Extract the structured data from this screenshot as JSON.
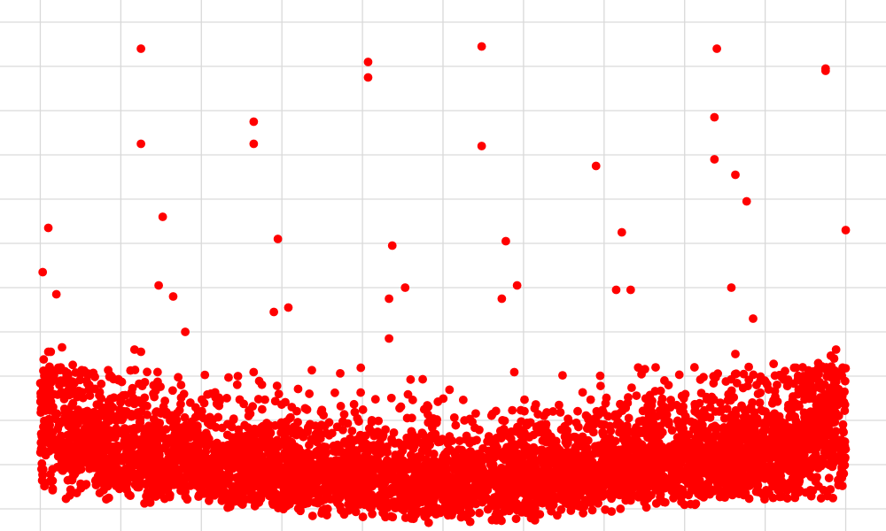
{
  "chart_data": {
    "type": "scatter",
    "title": "",
    "xlabel": "",
    "ylabel": "",
    "grid": true,
    "legend": "none",
    "point_color": "#ff0000",
    "point_count_estimate": 5000,
    "xlim": [
      -0.5,
      10.5
    ],
    "ylim": [
      -0.5,
      11.5
    ],
    "x_gridlines": [
      0,
      1,
      2,
      3,
      4,
      5,
      6,
      7,
      8,
      9,
      10
    ],
    "y_gridlines": [
      0,
      1,
      2,
      3,
      4,
      5,
      6,
      7,
      8,
      9,
      10,
      11
    ],
    "series": [
      {
        "values": [
          {
            "x": 0.1,
            "y": 6.35
          },
          {
            "x": 0.03,
            "y": 5.35
          },
          {
            "x": 0.2,
            "y": 4.85
          },
          {
            "x": 0.13,
            "y": 3.55
          },
          {
            "x": 0.1,
            "y": 3.55
          },
          {
            "x": 0.27,
            "y": 3.65
          },
          {
            "x": 1.25,
            "y": 10.4
          },
          {
            "x": 1.25,
            "y": 8.25
          },
          {
            "x": 1.17,
            "y": 3.6
          },
          {
            "x": 1.25,
            "y": 3.55
          },
          {
            "x": 1.52,
            "y": 6.6
          },
          {
            "x": 1.47,
            "y": 5.05
          },
          {
            "x": 1.65,
            "y": 4.8
          },
          {
            "x": 1.8,
            "y": 4.0
          },
          {
            "x": 2.65,
            "y": 8.75
          },
          {
            "x": 2.65,
            "y": 8.25
          },
          {
            "x": 2.95,
            "y": 6.1
          },
          {
            "x": 2.9,
            "y": 4.45
          },
          {
            "x": 3.08,
            "y": 4.55
          },
          {
            "x": 4.07,
            "y": 10.1
          },
          {
            "x": 4.07,
            "y": 9.75
          },
          {
            "x": 4.37,
            "y": 5.95
          },
          {
            "x": 4.53,
            "y": 5.0
          },
          {
            "x": 4.33,
            "y": 4.75
          },
          {
            "x": 4.33,
            "y": 3.85
          },
          {
            "x": 5.48,
            "y": 10.45
          },
          {
            "x": 5.48,
            "y": 8.2
          },
          {
            "x": 5.78,
            "y": 6.05
          },
          {
            "x": 5.92,
            "y": 5.05
          },
          {
            "x": 5.73,
            "y": 4.75
          },
          {
            "x": 6.9,
            "y": 7.75
          },
          {
            "x": 7.22,
            "y": 6.25
          },
          {
            "x": 7.15,
            "y": 4.95
          },
          {
            "x": 7.33,
            "y": 4.95
          },
          {
            "x": 8.4,
            "y": 10.4
          },
          {
            "x": 8.37,
            "y": 8.85
          },
          {
            "x": 8.37,
            "y": 7.9
          },
          {
            "x": 8.63,
            "y": 7.55
          },
          {
            "x": 8.77,
            "y": 6.95
          },
          {
            "x": 8.58,
            "y": 5.0
          },
          {
            "x": 8.85,
            "y": 4.3
          },
          {
            "x": 8.63,
            "y": 3.5
          },
          {
            "x": 9.75,
            "y": 9.95
          },
          {
            "x": 9.75,
            "y": 9.9
          },
          {
            "x": 10.0,
            "y": 6.3
          },
          {
            "x": 9.88,
            "y": 3.6
          }
        ]
      }
    ],
    "density": {
      "edge_peak_y": 1.5,
      "edge_peak_top_y": 3.5,
      "center_band_low_y": -0.45,
      "center_band_high_y": 2.0,
      "dense_region_top_y": 3.2
    }
  }
}
